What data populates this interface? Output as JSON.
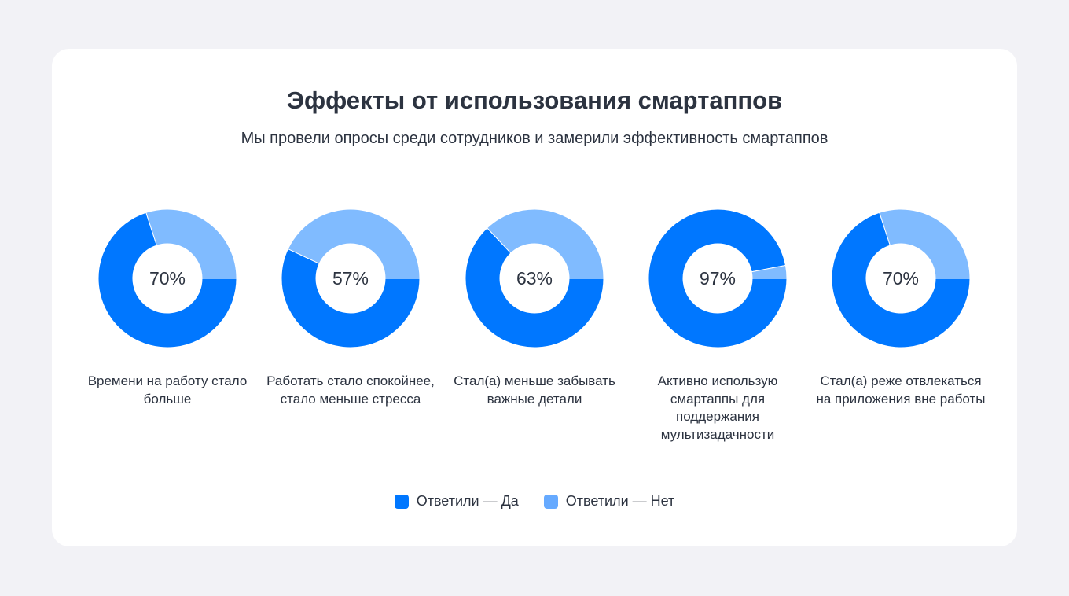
{
  "header": {
    "title": "Эффекты от использования смартаппов",
    "subtitle": "Мы провели опросы среди сотрудников и замерили эффективность смартаппов"
  },
  "colors": {
    "yes": "#0077FF",
    "no": "#80BBFF",
    "legend_no": "#66AAFF"
  },
  "chart_data": {
    "type": "donut",
    "title": "Эффекты от использования смартаппов",
    "categories": [
      "Времени на работу стало больше",
      "Работать стало спокойнее, стало меньше стресса",
      "Стал(а) меньше забывать важные детали",
      "Активно использую смартаппы для поддержания мультизадачности",
      "Стал(а) реже отвлекаться на приложения вне работы"
    ],
    "series": [
      {
        "name": "Ответили — Да",
        "values": [
          70,
          57,
          63,
          97,
          70
        ]
      },
      {
        "name": "Ответили — Нет",
        "values": [
          30,
          43,
          37,
          3,
          30
        ]
      }
    ],
    "data_labels": [
      "70%",
      "57%",
      "63%",
      "97%",
      "70%"
    ],
    "legend_position": "bottom"
  }
}
